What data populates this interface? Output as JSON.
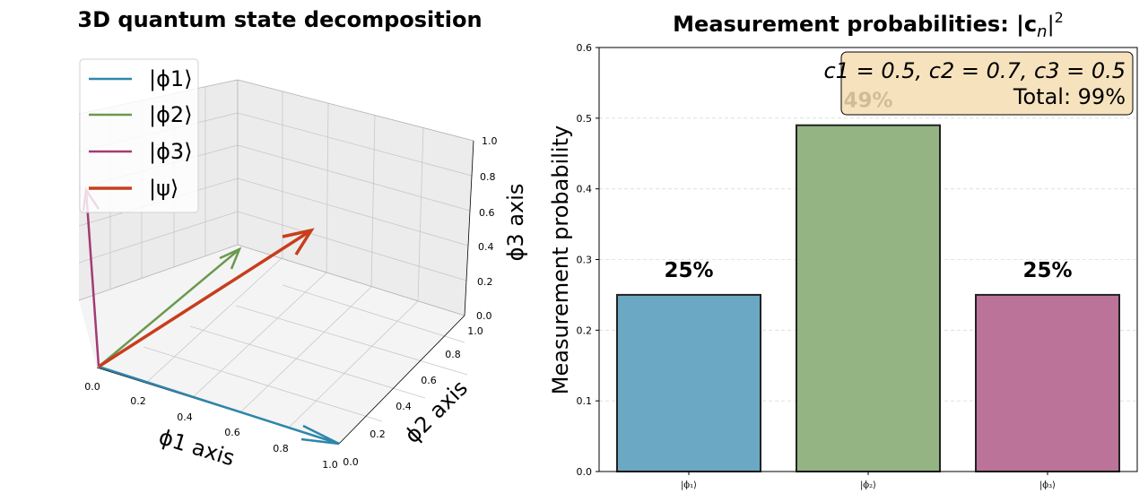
{
  "chart_data": [
    {
      "type": "line",
      "subtype": "3d-vector",
      "title": "3D quantum state decomposition",
      "xlabel": "ϕ1 axis",
      "ylabel": "ϕ2 axis",
      "zlabel": "ϕ3 axis",
      "xlim": [
        0,
        1
      ],
      "ylim": [
        0,
        1
      ],
      "zlim": [
        0,
        1
      ],
      "x_ticks": [
        "0.0",
        "0.2",
        "0.4",
        "0.6",
        "0.8",
        "1.0"
      ],
      "y_ticks": [
        "0.0",
        "0.2",
        "0.4",
        "0.6",
        "0.8",
        "1.0"
      ],
      "z_ticks": [
        "0.0",
        "0.2",
        "0.4",
        "0.6",
        "0.8",
        "1.0"
      ],
      "legend_position": "upper-left",
      "grid": true,
      "series": [
        {
          "name": "|ϕ1⟩",
          "color": "#2e86ab",
          "vector": [
            1,
            0,
            0
          ]
        },
        {
          "name": "|ϕ2⟩",
          "color": "#6a994e",
          "vector": [
            0,
            1,
            0
          ]
        },
        {
          "name": "|ϕ3⟩",
          "color": "#a23b72",
          "vector": [
            0,
            0,
            1
          ]
        },
        {
          "name": "|ψ⟩",
          "color": "#c73e1d",
          "vector": [
            0.5,
            0.7,
            0.5
          ]
        }
      ]
    },
    {
      "type": "bar",
      "title": "Measurement probabilities: |c",
      "title_sub": "n",
      "title_sup": "2",
      "ylabel": "Measurement probability",
      "ylim": [
        0,
        0.6
      ],
      "yticks": [
        "0.0",
        "0.1",
        "0.2",
        "0.3",
        "0.4",
        "0.5",
        "0.6"
      ],
      "categories": [
        "|ϕ₁⟩",
        "|ϕ₂⟩",
        "|ϕ₃⟩"
      ],
      "values": [
        0.25,
        0.49,
        0.25
      ],
      "value_labels": [
        "25%",
        "49%",
        "25%"
      ],
      "colors": [
        "#6ba8c4",
        "#94b583",
        "#bb7399"
      ],
      "grid": "y-dashed",
      "annotation": {
        "line1": "c1 = 0.5, c2 = 0.7, c3 = 0.5",
        "line2": "Total: 99%",
        "background": "#f5deb3"
      }
    }
  ]
}
